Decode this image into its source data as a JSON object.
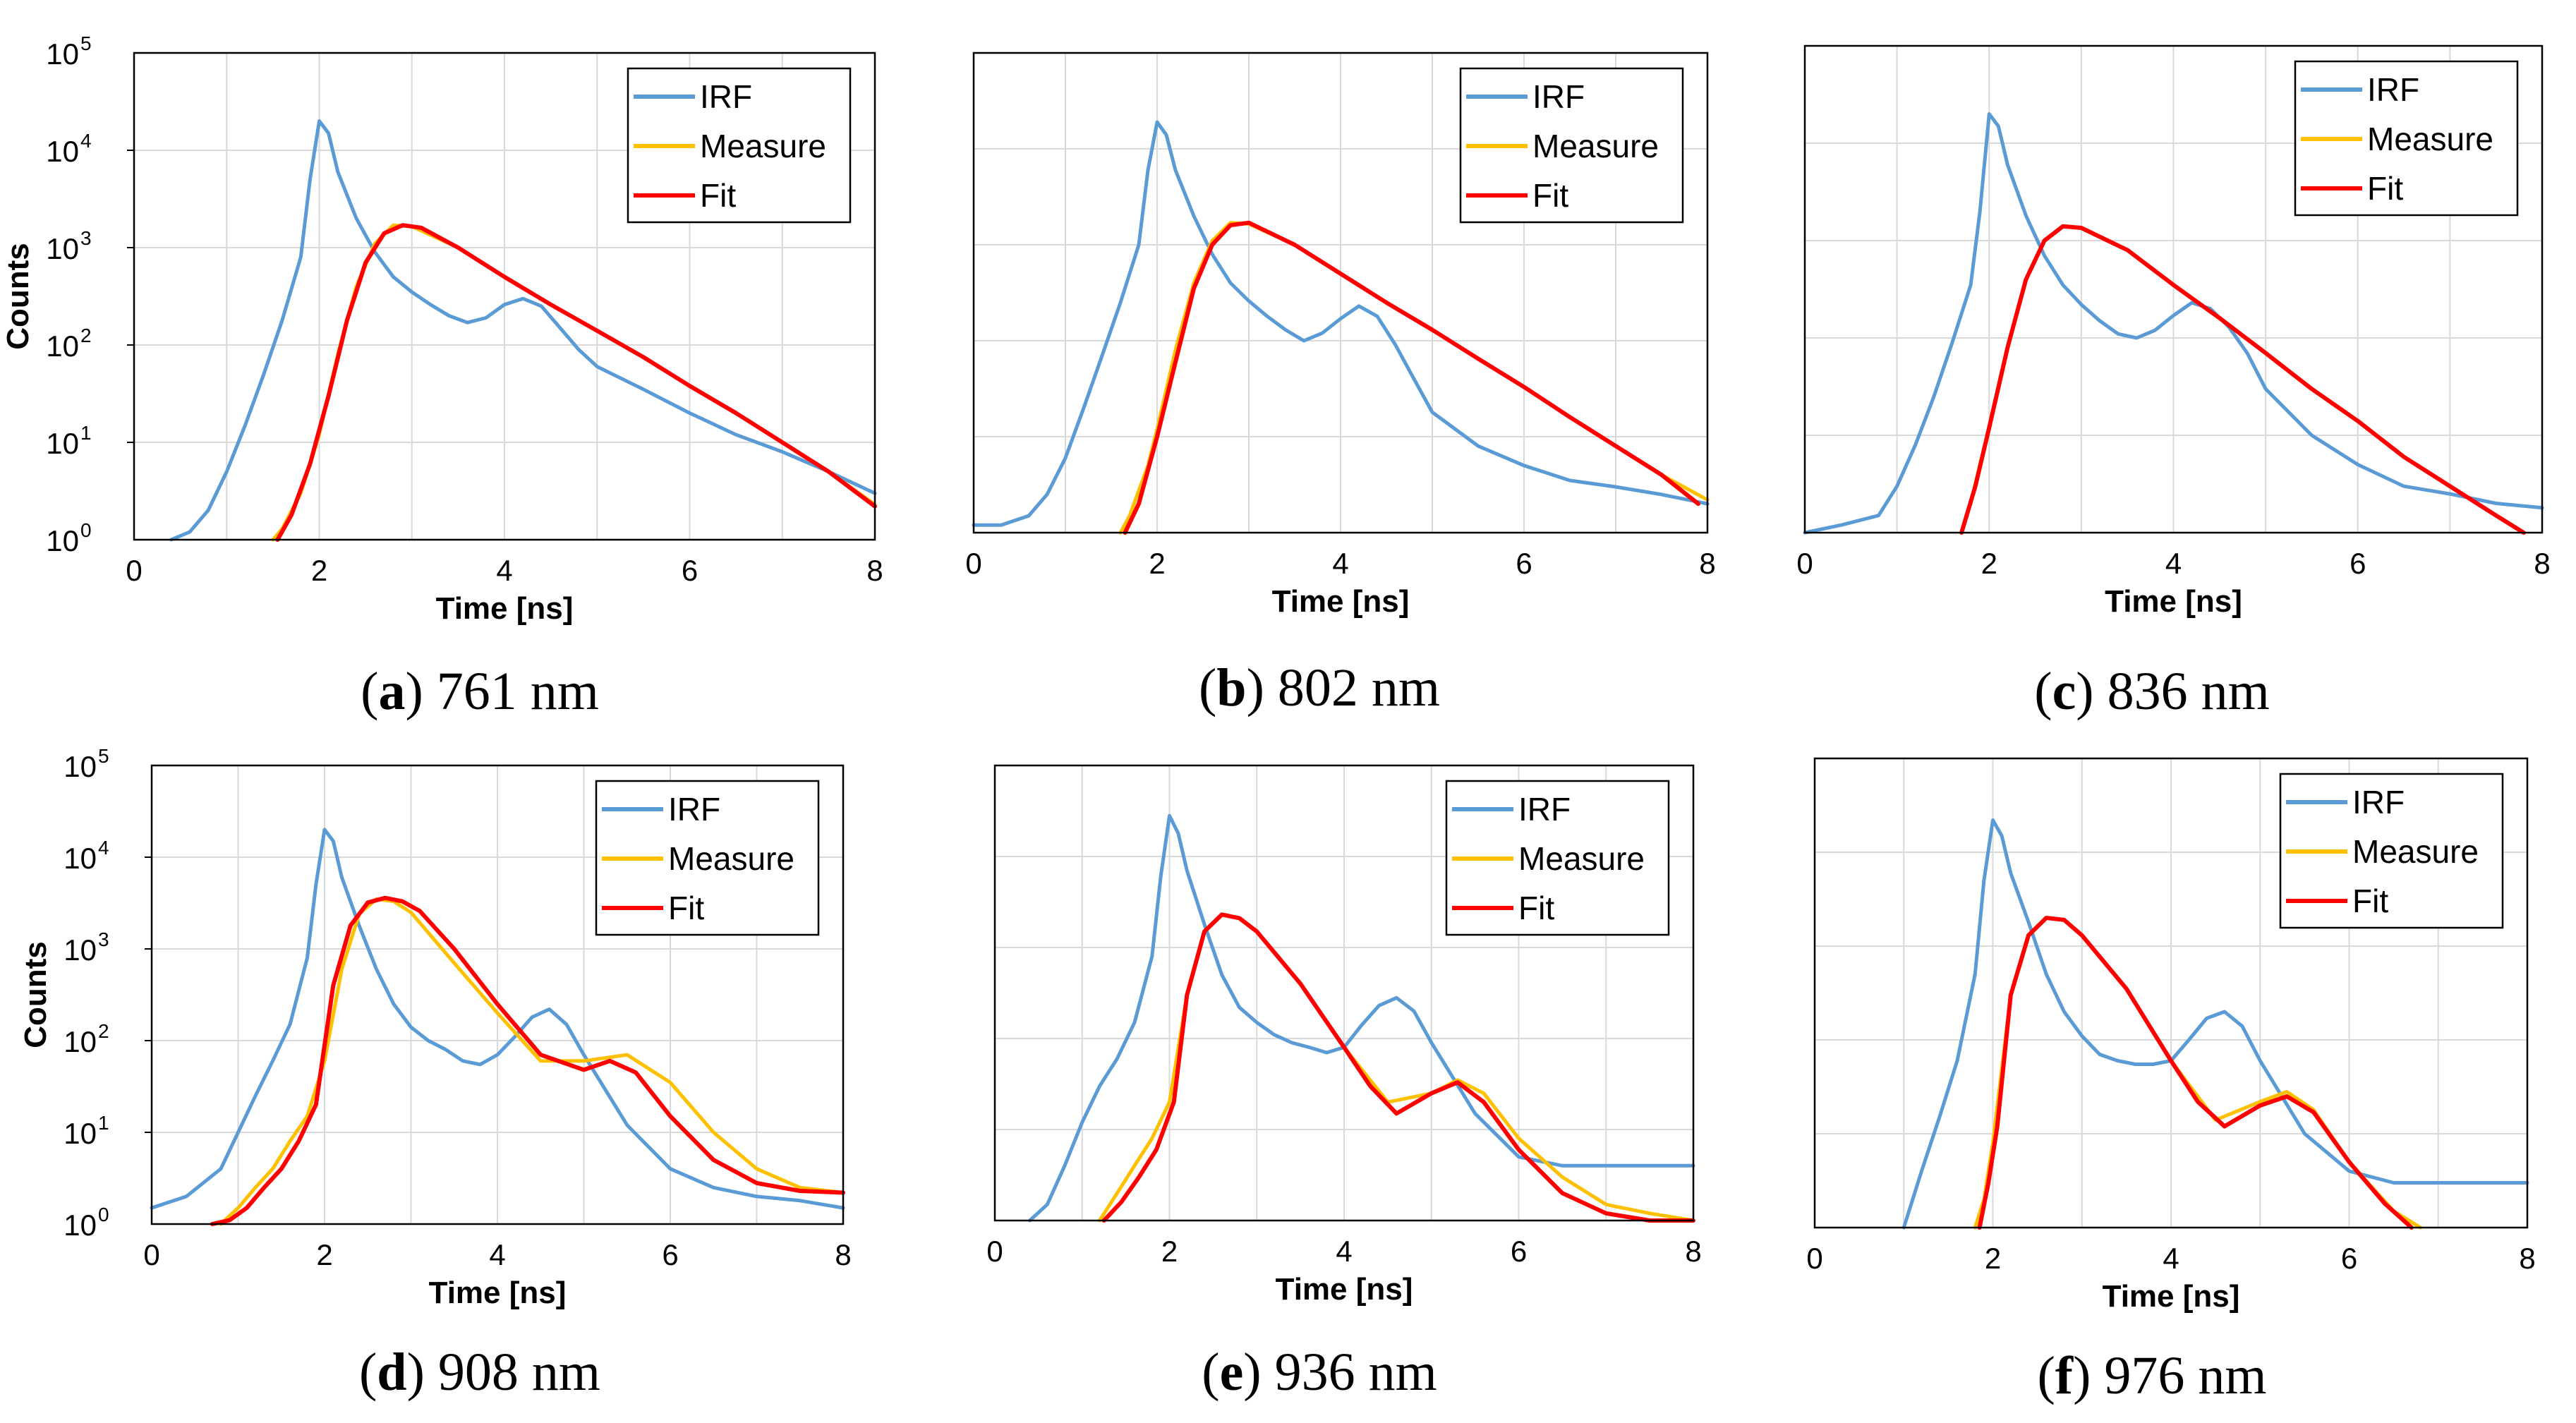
{
  "colors": {
    "irf": "#5b9bd5",
    "measure": "#ffc000",
    "fit": "#ff0000",
    "grid": "#d9d9d9",
    "frame": "#000000"
  },
  "chart_data": [
    {
      "type": "line",
      "caption_letter": "a",
      "caption_text": " 761 nm",
      "xlabel": "Time [ns]",
      "ylabel": "Counts",
      "show_y_ticks": true,
      "yscale": "log",
      "xlim": [
        0,
        8
      ],
      "ylim": [
        1,
        100000
      ],
      "xticks": [
        "0",
        "2",
        "4",
        "6",
        "8"
      ],
      "ybase": "10",
      "yexponents": [
        "0",
        "1",
        "2",
        "3",
        "4",
        "5"
      ],
      "legend": [
        "IRF",
        "Measure",
        "Fit"
      ],
      "legend_position": "top-right",
      "series": [
        {
          "name": "IRF",
          "x": [
            0.4,
            0.6,
            0.8,
            1.0,
            1.2,
            1.4,
            1.6,
            1.8,
            1.9,
            2.0,
            2.1,
            2.2,
            2.4,
            2.6,
            2.8,
            3.0,
            3.2,
            3.4,
            3.6,
            3.8,
            4.0,
            4.2,
            4.4,
            4.6,
            4.8,
            5.0,
            5.5,
            6.0,
            6.5,
            7.0,
            7.5,
            8.0
          ],
          "y": [
            1,
            1.2,
            2,
            5,
            15,
            50,
            180,
            800,
            5000,
            20000,
            15000,
            6000,
            2000,
            900,
            500,
            350,
            260,
            200,
            170,
            190,
            260,
            300,
            250,
            150,
            90,
            60,
            35,
            20,
            12,
            8,
            5,
            3
          ]
        },
        {
          "name": "Measure",
          "x": [
            1.5,
            1.6,
            1.8,
            2.0,
            2.2,
            2.4,
            2.6,
            2.8,
            3.0,
            3.5,
            4.0,
            4.5,
            5.0,
            5.5,
            6.0,
            6.5,
            7.0,
            7.5,
            8.0
          ],
          "y": [
            1,
            1.3,
            3,
            12,
            80,
            400,
            1100,
            1700,
            1650,
            1000,
            500,
            260,
            140,
            75,
            38,
            20,
            10,
            5,
            2.3
          ]
        },
        {
          "name": "Fit",
          "x": [
            1.55,
            1.7,
            1.9,
            2.1,
            2.3,
            2.5,
            2.7,
            2.9,
            3.1,
            3.5,
            4.0,
            4.5,
            5.0,
            5.5,
            6.0,
            6.5,
            7.0,
            7.5,
            8.0
          ],
          "y": [
            1,
            1.8,
            6,
            30,
            180,
            700,
            1400,
            1700,
            1600,
            1000,
            500,
            260,
            140,
            75,
            38,
            20,
            10,
            5,
            2.2
          ]
        }
      ]
    },
    {
      "type": "line",
      "caption_letter": "b",
      "caption_text": " 802 nm",
      "xlabel": "Time [ns]",
      "ylabel": "",
      "show_y_ticks": false,
      "yscale": "log",
      "xlim": [
        0,
        8
      ],
      "ylim": [
        1,
        100000
      ],
      "xticks": [
        "0",
        "2",
        "4",
        "6",
        "8"
      ],
      "ybase": "10",
      "yexponents": [],
      "legend": [
        "IRF",
        "Measure",
        "Fit"
      ],
      "legend_position": "top-right",
      "series": [
        {
          "name": "IRF",
          "x": [
            0.0,
            0.3,
            0.6,
            0.8,
            1.0,
            1.2,
            1.4,
            1.6,
            1.8,
            1.9,
            2.0,
            2.1,
            2.2,
            2.4,
            2.6,
            2.8,
            3.0,
            3.2,
            3.4,
            3.6,
            3.8,
            4.0,
            4.2,
            4.4,
            4.6,
            4.8,
            5.0,
            5.5,
            6.0,
            6.5,
            7.0,
            7.5,
            8.0
          ],
          "y": [
            1.2,
            1.2,
            1.5,
            2.5,
            6,
            20,
            70,
            250,
            1000,
            6000,
            19000,
            14000,
            6000,
            2000,
            800,
            400,
            260,
            180,
            130,
            100,
            120,
            170,
            230,
            180,
            90,
            40,
            18,
            8,
            5,
            3.5,
            3,
            2.5,
            2
          ]
        },
        {
          "name": "Measure",
          "x": [
            1.6,
            1.7,
            1.9,
            2.0,
            2.2,
            2.4,
            2.6,
            2.8,
            3.0,
            3.5,
            4.0,
            4.5,
            5.0,
            5.5,
            6.0,
            6.5,
            7.0,
            7.5,
            8.0
          ],
          "y": [
            1,
            1.5,
            5,
            12,
            80,
            400,
            1100,
            1700,
            1650,
            1000,
            500,
            250,
            130,
            65,
            33,
            16,
            8,
            4,
            2.2
          ]
        },
        {
          "name": "Fit",
          "x": [
            1.65,
            1.8,
            2.0,
            2.2,
            2.4,
            2.6,
            2.8,
            3.0,
            3.5,
            4.0,
            4.5,
            5.0,
            5.5,
            6.0,
            6.5,
            7.0,
            7.5,
            7.9
          ],
          "y": [
            1,
            2,
            10,
            60,
            350,
            1000,
            1600,
            1700,
            1000,
            500,
            250,
            130,
            65,
            33,
            16,
            8,
            4,
            2
          ]
        }
      ]
    },
    {
      "type": "line",
      "caption_letter": "c",
      "caption_text": " 836 nm",
      "xlabel": "Time [ns]",
      "ylabel": "",
      "show_y_ticks": false,
      "yscale": "log",
      "xlim": [
        0,
        8
      ],
      "ylim": [
        1,
        100000
      ],
      "xticks": [
        "0",
        "2",
        "4",
        "6",
        "8"
      ],
      "ybase": "10",
      "yexponents": [],
      "legend": [
        "IRF",
        "Measure",
        "Fit"
      ],
      "legend_position": "top-right",
      "series": [
        {
          "name": "IRF",
          "x": [
            0.0,
            0.4,
            0.8,
            1.0,
            1.2,
            1.4,
            1.6,
            1.8,
            1.9,
            2.0,
            2.1,
            2.2,
            2.4,
            2.6,
            2.8,
            3.0,
            3.2,
            3.4,
            3.6,
            3.8,
            4.0,
            4.2,
            4.4,
            4.6,
            4.8,
            5.0,
            5.5,
            6.0,
            6.5,
            7.0,
            7.5,
            8.0
          ],
          "y": [
            1,
            1.2,
            1.5,
            3,
            8,
            25,
            90,
            350,
            2000,
            20000,
            15000,
            6000,
            1800,
            700,
            350,
            220,
            150,
            110,
            100,
            120,
            170,
            230,
            200,
            130,
            70,
            30,
            10,
            5,
            3,
            2.5,
            2,
            1.8
          ]
        },
        {
          "name": "Measure",
          "x": [
            1.7,
            1.8,
            1.9,
            2.0,
            2.2,
            2.4,
            2.6,
            2.8,
            3.0,
            3.5,
            4.0,
            4.5,
            5.0,
            5.5,
            6.0,
            6.5,
            7.0,
            7.5,
            7.8
          ],
          "y": [
            1,
            2,
            5,
            12,
            80,
            400,
            1000,
            1400,
            1350,
            800,
            350,
            160,
            70,
            30,
            14,
            6,
            3,
            1.5,
            1
          ]
        },
        {
          "name": "Fit",
          "x": [
            1.7,
            1.85,
            2.0,
            2.2,
            2.4,
            2.6,
            2.8,
            3.0,
            3.5,
            4.0,
            4.5,
            5.0,
            5.5,
            6.0,
            6.5,
            7.0,
            7.5,
            7.8
          ],
          "y": [
            1,
            3,
            12,
            80,
            400,
            1000,
            1400,
            1350,
            800,
            350,
            160,
            70,
            30,
            14,
            6,
            3,
            1.5,
            1
          ]
        }
      ]
    },
    {
      "type": "line",
      "caption_letter": "d",
      "caption_text": " 908 nm",
      "xlabel": "Time [ns]",
      "ylabel": "Counts",
      "show_y_ticks": true,
      "yscale": "log",
      "xlim": [
        0,
        8
      ],
      "ylim": [
        1,
        100000
      ],
      "xticks": [
        "0",
        "2",
        "4",
        "6",
        "8"
      ],
      "ybase": "10",
      "yexponents": [
        "0",
        "1",
        "2",
        "3",
        "4",
        "5"
      ],
      "legend": [
        "IRF",
        "Measure",
        "Fit"
      ],
      "legend_position": "top-right",
      "series": [
        {
          "name": "IRF",
          "x": [
            0.0,
            0.4,
            0.8,
            1.0,
            1.2,
            1.4,
            1.6,
            1.8,
            1.9,
            2.0,
            2.1,
            2.2,
            2.4,
            2.6,
            2.8,
            3.0,
            3.2,
            3.4,
            3.6,
            3.8,
            4.0,
            4.2,
            4.4,
            4.6,
            4.8,
            5.0,
            5.5,
            6.0,
            6.5,
            7.0,
            7.5,
            8.0
          ],
          "y": [
            1.5,
            2,
            4,
            10,
            25,
            60,
            150,
            800,
            5000,
            20000,
            15000,
            6000,
            1800,
            600,
            250,
            140,
            100,
            80,
            60,
            55,
            70,
            110,
            180,
            220,
            150,
            70,
            12,
            4,
            2.5,
            2,
            1.8,
            1.5
          ]
        },
        {
          "name": "Measure",
          "x": [
            0.8,
            1.0,
            1.2,
            1.4,
            1.6,
            1.8,
            2.0,
            2.2,
            2.4,
            2.6,
            2.8,
            3.0,
            3.5,
            4.0,
            4.5,
            5.0,
            5.5,
            6.0,
            6.5,
            7.0,
            7.5,
            8.0
          ],
          "y": [
            1,
            1.5,
            2.5,
            4,
            8,
            15,
            60,
            600,
            2400,
            3500,
            3300,
            2500,
            700,
            200,
            60,
            60,
            70,
            35,
            10,
            4,
            2.5,
            2.2
          ]
        },
        {
          "name": "Fit",
          "x": [
            0.7,
            0.9,
            1.1,
            1.3,
            1.5,
            1.7,
            1.9,
            2.1,
            2.3,
            2.5,
            2.7,
            2.9,
            3.1,
            3.5,
            4.0,
            4.5,
            5.0,
            5.3,
            5.6,
            6.0,
            6.5,
            7.0,
            7.5,
            8.0
          ],
          "y": [
            1,
            1.1,
            1.5,
            2.5,
            4,
            8,
            20,
            400,
            1800,
            3200,
            3600,
            3300,
            2600,
            1000,
            250,
            70,
            48,
            60,
            45,
            15,
            5,
            2.8,
            2.3,
            2.2
          ]
        }
      ]
    },
    {
      "type": "line",
      "caption_letter": "e",
      "caption_text": " 936 nm",
      "xlabel": "Time [ns]",
      "ylabel": "",
      "show_y_ticks": false,
      "yscale": "log",
      "xlim": [
        0,
        8
      ],
      "ylim": [
        1,
        100000
      ],
      "xticks": [
        "0",
        "2",
        "4",
        "6",
        "8"
      ],
      "ybase": "10",
      "yexponents": [],
      "legend": [
        "IRF",
        "Measure",
        "Fit"
      ],
      "legend_position": "top-right",
      "series": [
        {
          "name": "IRF",
          "x": [
            0.4,
            0.6,
            0.8,
            1.0,
            1.2,
            1.4,
            1.6,
            1.8,
            1.9,
            2.0,
            2.1,
            2.2,
            2.4,
            2.6,
            2.8,
            3.0,
            3.2,
            3.4,
            3.6,
            3.8,
            4.0,
            4.2,
            4.4,
            4.6,
            4.8,
            5.0,
            5.5,
            6.0,
            6.5,
            7.0,
            7.5,
            8.0
          ],
          "y": [
            1,
            1.5,
            4,
            12,
            30,
            60,
            150,
            800,
            6000,
            28000,
            18000,
            7000,
            1800,
            500,
            220,
            150,
            110,
            90,
            80,
            70,
            80,
            140,
            230,
            280,
            200,
            90,
            15,
            5,
            4,
            4,
            4,
            4
          ]
        },
        {
          "name": "Measure",
          "x": [
            1.2,
            1.4,
            1.6,
            1.8,
            2.0,
            2.2,
            2.4,
            2.6,
            2.8,
            3.0,
            3.5,
            4.0,
            4.5,
            5.0,
            5.3,
            5.6,
            6.0,
            6.5,
            7.0,
            7.5,
            8.0
          ],
          "y": [
            1,
            2,
            4,
            8,
            20,
            300,
            1500,
            2300,
            2100,
            1500,
            400,
            80,
            20,
            25,
            35,
            25,
            8,
            3,
            1.5,
            1.2,
            1
          ]
        },
        {
          "name": "Fit",
          "x": [
            1.25,
            1.45,
            1.65,
            1.85,
            2.05,
            2.2,
            2.4,
            2.6,
            2.8,
            3.0,
            3.5,
            4.0,
            4.3,
            4.6,
            5.0,
            5.3,
            5.6,
            6.0,
            6.5,
            7.0,
            7.5,
            8.0
          ],
          "y": [
            1,
            1.6,
            3,
            6,
            20,
            300,
            1500,
            2300,
            2100,
            1500,
            400,
            80,
            30,
            15,
            25,
            33,
            20,
            6,
            2,
            1.2,
            1,
            1
          ]
        }
      ]
    },
    {
      "type": "line",
      "caption_letter": "f",
      "caption_text": " 976 nm",
      "xlabel": "Time [ns]",
      "ylabel": "",
      "show_y_ticks": false,
      "yscale": "log",
      "xlim": [
        0,
        8
      ],
      "ylim": [
        1,
        100000
      ],
      "xticks": [
        "0",
        "2",
        "4",
        "6",
        "8"
      ],
      "ybase": "10",
      "yexponents": [],
      "legend": [
        "IRF",
        "Measure",
        "Fit"
      ],
      "legend_position": "top-right",
      "series": [
        {
          "name": "IRF",
          "x": [
            1.0,
            1.2,
            1.4,
            1.6,
            1.8,
            1.9,
            2.0,
            2.1,
            2.2,
            2.4,
            2.6,
            2.8,
            3.0,
            3.2,
            3.4,
            3.6,
            3.8,
            4.0,
            4.2,
            4.4,
            4.6,
            4.8,
            5.0,
            5.5,
            6.0,
            6.5,
            7.0,
            7.5,
            8.0
          ],
          "y": [
            1,
            4,
            15,
            60,
            500,
            5000,
            22000,
            15000,
            6000,
            1800,
            500,
            200,
            110,
            70,
            60,
            55,
            55,
            60,
            100,
            170,
            200,
            140,
            60,
            10,
            4,
            3,
            3,
            3,
            3
          ]
        },
        {
          "name": "Measure",
          "x": [
            1.8,
            1.9,
            2.0,
            2.2,
            2.4,
            2.6,
            2.8,
            3.0,
            3.5,
            4.0,
            4.5,
            5.0,
            5.3,
            5.6,
            6.0,
            6.5,
            6.8
          ],
          "y": [
            1,
            2,
            8,
            300,
            1300,
            2000,
            1900,
            1300,
            350,
            60,
            14,
            22,
            28,
            18,
            5,
            1.5,
            1
          ]
        },
        {
          "name": "Fit",
          "x": [
            1.85,
            1.95,
            2.05,
            2.2,
            2.4,
            2.6,
            2.8,
            3.0,
            3.5,
            4.0,
            4.3,
            4.6,
            5.0,
            5.3,
            5.6,
            6.0,
            6.4,
            6.7
          ],
          "y": [
            1,
            3,
            12,
            300,
            1300,
            2000,
            1900,
            1300,
            350,
            60,
            22,
            12,
            20,
            25,
            17,
            5,
            1.8,
            1
          ]
        }
      ]
    }
  ]
}
